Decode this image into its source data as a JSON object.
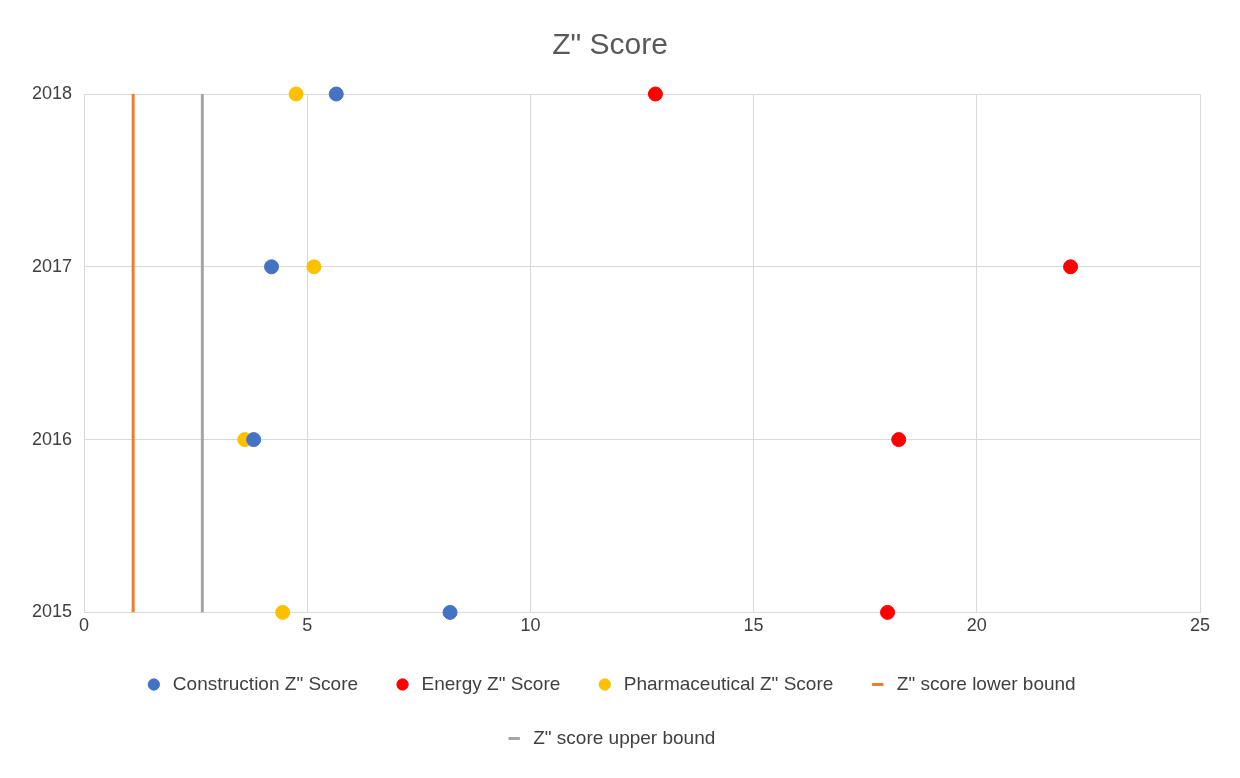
{
  "chart_data": {
    "type": "scatter",
    "title": "Z\" Score",
    "xlim": [
      0,
      25
    ],
    "xticks": [
      0,
      5,
      10,
      15,
      20,
      25
    ],
    "ylim": [
      2015,
      2018
    ],
    "yticks": [
      2015,
      2016,
      2017,
      2018
    ],
    "grid": true,
    "legend": "bottom",
    "marker": "circle",
    "series": [
      {
        "name": "Construction Z\" Score",
        "color": "#4472c4",
        "x": [
          8.2,
          3.8,
          4.2,
          5.65
        ],
        "values": [
          2015,
          2016,
          2017,
          2018
        ]
      },
      {
        "name": "Energy Z\" Score",
        "color": "#ff0000",
        "x": [
          18.0,
          18.25,
          22.1,
          12.8
        ],
        "values": [
          2015,
          2016,
          2017,
          2018
        ]
      },
      {
        "name": "Pharmaceutical Z\" Score",
        "color": "#ffc000",
        "x": [
          4.45,
          3.6,
          5.15,
          4.75
        ],
        "values": [
          2015,
          2016,
          2017,
          2018
        ]
      },
      {
        "name": "Z\" score lower bound",
        "type": "line",
        "marker": "none",
        "color": "#ed7d31",
        "x": [
          1.1,
          1.1
        ],
        "values": [
          2015,
          2018
        ]
      },
      {
        "name": "Z\" score upper bound",
        "type": "line",
        "marker": "none",
        "color": "#a5a5a5",
        "x": [
          2.65,
          2.65
        ],
        "values": [
          2015,
          2018
        ]
      }
    ]
  }
}
